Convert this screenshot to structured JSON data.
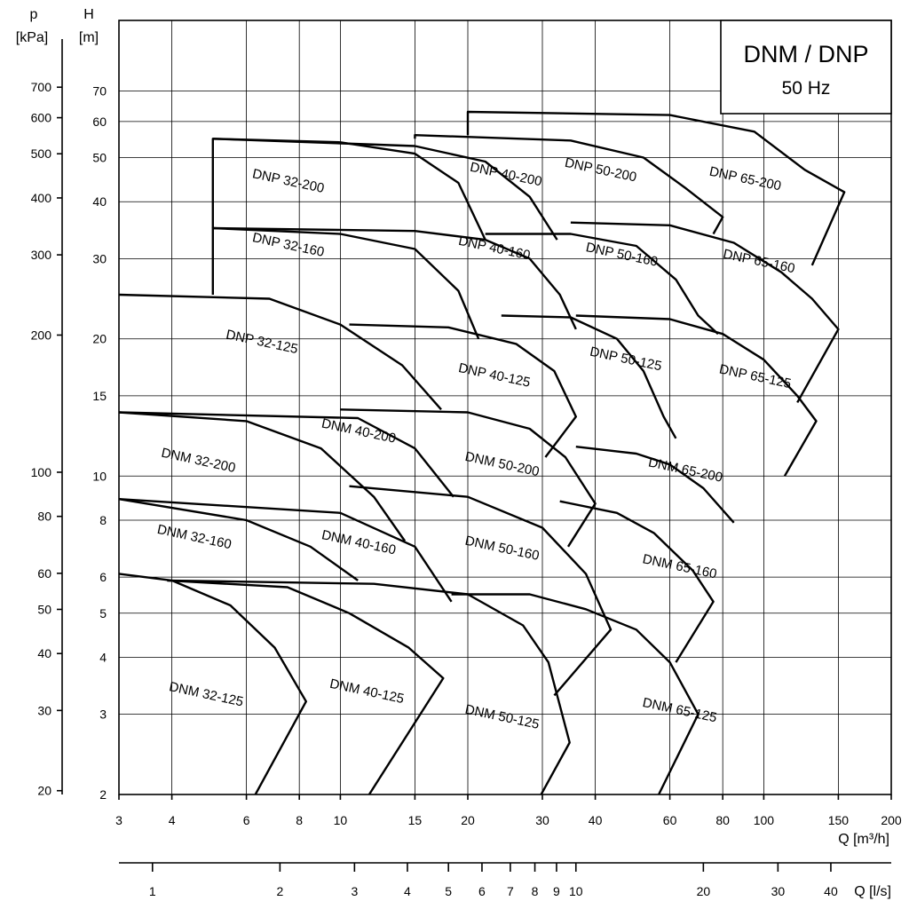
{
  "chart_data": {
    "type": "line",
    "title": "DNM / DNP",
    "subtitle": "50 Hz",
    "xlabel": "Q [m³/h]",
    "x2label": "Q [l/s]",
    "ylabel": "H [m]",
    "ylabel_top": "H",
    "ylabel_unit": "[m]",
    "y2label": "p [kPa]",
    "y2label_top": "p",
    "y2label_unit": "[kPa]",
    "xscale": "log",
    "yscale": "log",
    "xlim": [
      3,
      200
    ],
    "ylim": [
      2,
      100
    ],
    "grid": true,
    "x_ticks": [
      3,
      4,
      6,
      8,
      10,
      15,
      20,
      30,
      40,
      60,
      80,
      100,
      150,
      200
    ],
    "y_ticks": [
      2,
      3,
      4,
      5,
      6,
      8,
      10,
      15,
      20,
      30,
      40,
      50,
      60,
      70
    ],
    "x2_ticks": [
      1,
      2,
      3,
      4,
      5,
      6,
      7,
      8,
      9,
      10,
      20,
      30,
      40
    ],
    "p_ticks": [
      20,
      30,
      40,
      50,
      60,
      80,
      100,
      200,
      300,
      400,
      500,
      600,
      700
    ],
    "series": [
      {
        "name": "DNM 32-125",
        "label_at": [
          4.8,
          3.25
        ],
        "points": [
          [
            3,
            6.1
          ],
          [
            4,
            5.9
          ],
          [
            5.5,
            5.2
          ],
          [
            7,
            4.2
          ],
          [
            8.3,
            3.2
          ],
          [
            6.3,
            2
          ]
        ]
      },
      {
        "name": "DNM 32-160",
        "label_at": [
          4.5,
          7.2
        ],
        "points": [
          [
            3,
            8.9
          ],
          [
            6,
            8.0
          ],
          [
            8.5,
            7.0
          ],
          [
            11,
            5.9
          ]
        ]
      },
      {
        "name": "DNM 32-200",
        "label_at": [
          4.6,
          10.6
        ],
        "points": [
          [
            3,
            13.8
          ],
          [
            6,
            13.2
          ],
          [
            9,
            11.5
          ],
          [
            12,
            9.0
          ],
          [
            14.2,
            7.2
          ]
        ]
      },
      {
        "name": "DNM 40-125",
        "label_at": [
          11.5,
          3.3
        ],
        "points": [
          [
            3.9,
            5.9
          ],
          [
            7.5,
            5.7
          ],
          [
            10.5,
            5.0
          ],
          [
            14.5,
            4.2
          ],
          [
            17.5,
            3.6
          ],
          [
            11.7,
            2
          ]
        ]
      },
      {
        "name": "DNM 40-160",
        "label_at": [
          11,
          7.0
        ],
        "points": [
          [
            3,
            8.9
          ],
          [
            10,
            8.3
          ],
          [
            15,
            7.0
          ],
          [
            18.3,
            5.3
          ]
        ]
      },
      {
        "name": "DNM 40-200",
        "label_at": [
          11,
          12.3
        ],
        "points": [
          [
            3,
            13.8
          ],
          [
            11,
            13.4
          ],
          [
            15,
            11.5
          ],
          [
            18.5,
            9.0
          ]
        ]
      },
      {
        "name": "DNM 50-125",
        "label_at": [
          24,
          2.9
        ],
        "points": [
          [
            3.9,
            5.9
          ],
          [
            12,
            5.8
          ],
          [
            20,
            5.5
          ],
          [
            27,
            4.7
          ],
          [
            31,
            3.9
          ],
          [
            34.8,
            2.6
          ],
          [
            29.8,
            2
          ]
        ]
      },
      {
        "name": "DNM 50-160",
        "label_at": [
          24,
          6.8
        ],
        "points": [
          [
            10.5,
            9.5
          ],
          [
            20,
            9.0
          ],
          [
            30,
            7.7
          ],
          [
            38,
            6.1
          ],
          [
            43.5,
            4.6
          ],
          [
            32,
            3.3
          ]
        ]
      },
      {
        "name": "DNM 50-200",
        "label_at": [
          24,
          10.4
        ],
        "points": [
          [
            10,
            14.0
          ],
          [
            20,
            13.8
          ],
          [
            28,
            12.7
          ],
          [
            34,
            11.0
          ],
          [
            40,
            8.7
          ],
          [
            34.5,
            7.0
          ]
        ]
      },
      {
        "name": "DNM 65-125",
        "label_at": [
          63,
          3.0
        ],
        "points": [
          [
            18.3,
            5.5
          ],
          [
            28,
            5.5
          ],
          [
            38,
            5.1
          ],
          [
            50,
            4.6
          ],
          [
            60,
            3.9
          ],
          [
            70,
            3.0
          ],
          [
            56.5,
            2
          ]
        ]
      },
      {
        "name": "DNM 65-160",
        "label_at": [
          63,
          6.2
        ],
        "points": [
          [
            33,
            8.8
          ],
          [
            45,
            8.3
          ],
          [
            55,
            7.5
          ],
          [
            68,
            6.2
          ],
          [
            76,
            5.3
          ],
          [
            62,
            3.9
          ]
        ]
      },
      {
        "name": "DNM 65-200",
        "label_at": [
          65,
          10.1
        ],
        "points": [
          [
            36,
            11.6
          ],
          [
            50,
            11.2
          ],
          [
            60,
            10.6
          ],
          [
            72,
            9.4
          ],
          [
            85,
            7.9
          ]
        ]
      },
      {
        "name": "DNP 32-125",
        "label_at": [
          6.5,
          19.3
        ],
        "points": [
          [
            3,
            25
          ],
          [
            6.8,
            24.5
          ],
          [
            10,
            21.5
          ],
          [
            14,
            17.5
          ],
          [
            17.3,
            14.0
          ]
        ]
      },
      {
        "name": "DNP 32-160",
        "label_at": [
          7.5,
          31.5
        ],
        "points": [
          [
            5,
            25
          ],
          [
            5,
            35
          ],
          [
            10,
            34
          ],
          [
            15,
            31.5
          ],
          [
            19,
            25.5
          ],
          [
            21.2,
            20
          ]
        ]
      },
      {
        "name": "DNP 32-200",
        "label_at": [
          7.5,
          43.5
        ],
        "points": [
          [
            5,
            35
          ],
          [
            5,
            55
          ],
          [
            10,
            54
          ],
          [
            15,
            51
          ],
          [
            19,
            44
          ],
          [
            22,
            33
          ]
        ]
      },
      {
        "name": "DNP 40-125",
        "label_at": [
          23,
          16.3
        ],
        "points": [
          [
            10.5,
            21.5
          ],
          [
            18,
            21.2
          ],
          [
            26,
            19.5
          ],
          [
            32,
            17
          ],
          [
            36,
            13.5
          ],
          [
            30.5,
            11.0
          ]
        ]
      },
      {
        "name": "DNP 40-160",
        "label_at": [
          23,
          31
        ],
        "points": [
          [
            5,
            35
          ],
          [
            15,
            34.5
          ],
          [
            22,
            33
          ],
          [
            28,
            30
          ],
          [
            33,
            25
          ],
          [
            36,
            21
          ]
        ]
      },
      {
        "name": "DNP 40-200",
        "label_at": [
          24.5,
          45
        ],
        "points": [
          [
            5,
            55
          ],
          [
            15,
            53
          ],
          [
            22,
            49
          ],
          [
            28,
            41
          ],
          [
            32.5,
            33
          ]
        ]
      },
      {
        "name": "DNP 50-200",
        "label_at": [
          41,
          46
        ],
        "points": [
          [
            15,
            55
          ],
          [
            15,
            56
          ],
          [
            35,
            54.5
          ],
          [
            52,
            50
          ],
          [
            65,
            43
          ],
          [
            80,
            37
          ],
          [
            76,
            34
          ]
        ]
      },
      {
        "name": "DNP 50-160",
        "label_at": [
          46,
          30
        ],
        "points": [
          [
            22,
            34
          ],
          [
            35,
            34
          ],
          [
            50,
            32
          ],
          [
            62,
            27
          ],
          [
            70,
            22.5
          ],
          [
            78,
            20.5
          ]
        ]
      },
      {
        "name": "DNP 50-125",
        "label_at": [
          47,
          17.7
        ],
        "points": [
          [
            24,
            22.5
          ],
          [
            35,
            22.3
          ],
          [
            45,
            20
          ],
          [
            52,
            17
          ],
          [
            58,
            13.5
          ],
          [
            62,
            12.1
          ]
        ]
      },
      {
        "name": "DNP 65-200",
        "label_at": [
          90,
          44
        ],
        "points": [
          [
            20,
            56
          ],
          [
            20,
            63
          ],
          [
            60,
            62
          ],
          [
            95,
            57
          ],
          [
            125,
            47
          ],
          [
            155,
            42
          ],
          [
            130,
            29
          ]
        ]
      },
      {
        "name": "DNP 65-160",
        "label_at": [
          97,
          29
        ],
        "points": [
          [
            35,
            36
          ],
          [
            60,
            35.5
          ],
          [
            85,
            32.5
          ],
          [
            110,
            28
          ],
          [
            130,
            24.5
          ],
          [
            150,
            21
          ],
          [
            120,
            14.5
          ]
        ]
      },
      {
        "name": "DNP 65-125",
        "label_at": [
          95,
          16.2
        ],
        "points": [
          [
            36,
            22.5
          ],
          [
            60,
            22.1
          ],
          [
            80,
            20.5
          ],
          [
            100,
            18
          ],
          [
            120,
            15
          ],
          [
            133,
            13.2
          ],
          [
            112,
            10
          ]
        ]
      }
    ]
  }
}
